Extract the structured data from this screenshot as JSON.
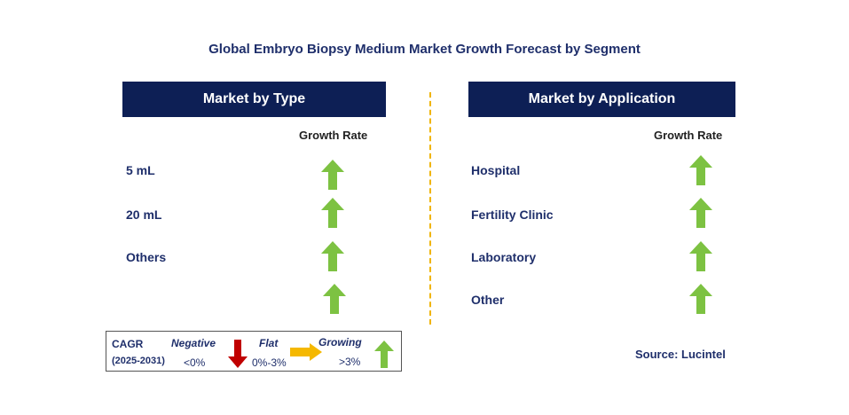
{
  "title": "Global Embryo Biopsy Medium Market Growth Forecast by Segment",
  "left_panel": {
    "header": "Market by Type",
    "growth_rate_label": "Growth Rate",
    "rows": [
      {
        "label": "5 mL",
        "trend": "growing"
      },
      {
        "label": "20 mL",
        "trend": "growing"
      },
      {
        "label": "Others",
        "trend": "growing"
      },
      {
        "label": "",
        "trend": "growing"
      }
    ]
  },
  "right_panel": {
    "header": "Market by Application",
    "growth_rate_label": "Growth Rate",
    "rows": [
      {
        "label": "Hospital",
        "trend": "growing"
      },
      {
        "label": "Fertility Clinic",
        "trend": "growing"
      },
      {
        "label": "Laboratory",
        "trend": "growing"
      },
      {
        "label": "Other",
        "trend": "growing"
      }
    ]
  },
  "legend": {
    "cagr_label": "CAGR",
    "period": "(2025-2031)",
    "negative_label": "Negative",
    "negative_range": "<0%",
    "flat_label": "Flat",
    "flat_range": "0%-3%",
    "growing_label": "Growing",
    "growing_range": ">3%"
  },
  "source": "Source: Lucintel",
  "colors": {
    "header_bg": "#0d1f55",
    "growing_arrow": "#7dc242",
    "negative_arrow": "#c00000",
    "flat_arrow": "#f5b800",
    "divider": "#f0b400"
  }
}
